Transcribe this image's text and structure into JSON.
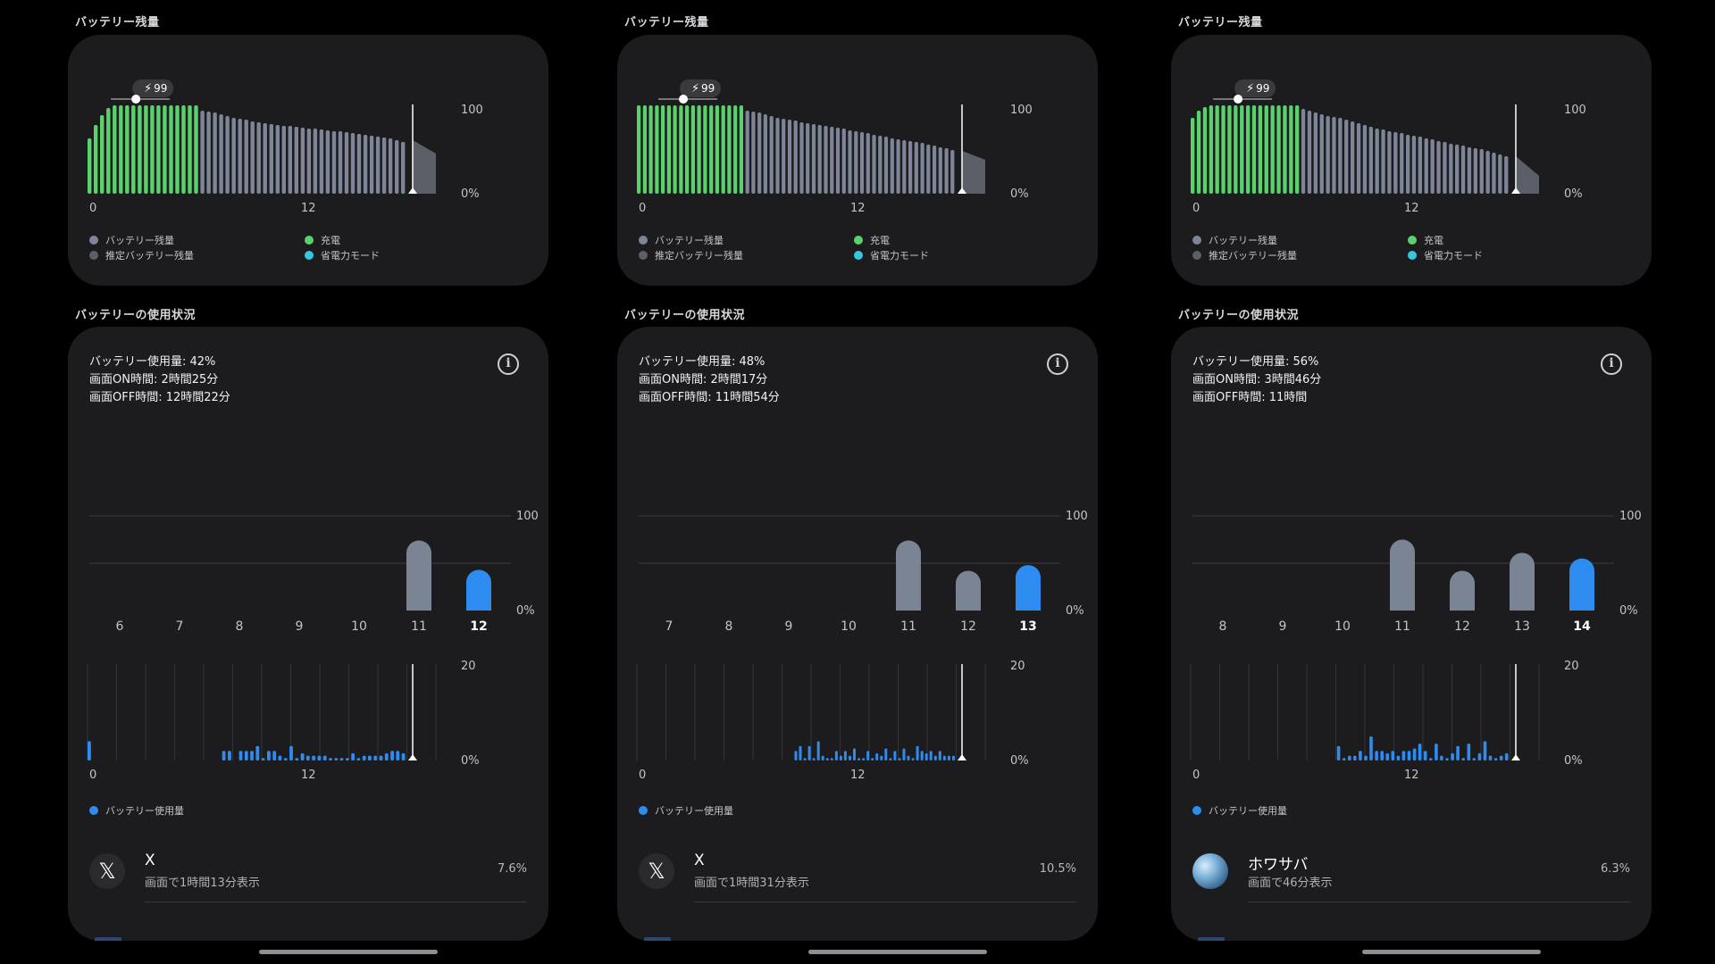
{
  "colors": {
    "charging": "#5bd16d",
    "battery_level": "#7d8597",
    "estimated": "#5b5f68",
    "power_saving": "#34c8e0",
    "usage": "#2e8cf0",
    "usage_past": "#7a8494"
  },
  "common": {
    "level_title": "バッテリー残量",
    "usage_title": "バッテリーの使用状況",
    "legend_level": "バッテリー残量",
    "legend_estimated": "推定バッテリー残量",
    "legend_charge": "充電",
    "legend_saver": "省電力モード",
    "legend_usage": "バッテリー使用量",
    "axis_100": "100",
    "axis_0": "0%",
    "axis_20": "20",
    "tick_0": "0",
    "tick_12": "12",
    "info_icon": "info-icon"
  },
  "screens": [
    {
      "charge_badge": "99",
      "stats": {
        "usage": "バッテリー使用量: 42%",
        "on": "画面ON時間: 2時間25分",
        "off": "画面OFF時間: 12時間22分"
      },
      "app": {
        "icon": "x-icon",
        "name": "X",
        "sub": "画面で1時間13分表示",
        "pct": "7.6%"
      }
    },
    {
      "charge_badge": "99",
      "stats": {
        "usage": "バッテリー使用量: 48%",
        "on": "画面ON時間: 2時間17分",
        "off": "画面OFF時間: 11時間54分"
      },
      "app": {
        "icon": "x-icon",
        "name": "X",
        "sub": "画面で1時間31分表示",
        "pct": "10.5%"
      }
    },
    {
      "charge_badge": "99",
      "stats": {
        "usage": "バッテリー使用量: 56%",
        "on": "画面ON時間: 3時間46分",
        "off": "画面OFF時間: 11時間"
      },
      "app": {
        "icon": "globe-icon",
        "name": "ホワサバ",
        "sub": "画面で46分表示",
        "pct": "6.3%"
      }
    }
  ],
  "chart_data": [
    {
      "type": "bar",
      "title": "バッテリー残量",
      "screen": 0,
      "x_ticks": [
        "0",
        "12"
      ],
      "ylim": [
        0,
        100
      ],
      "charging_values": [
        62,
        77,
        88,
        96,
        99,
        99,
        99,
        99,
        99,
        99,
        99,
        99,
        99,
        99,
        99,
        99,
        99,
        99
      ],
      "level_values": [
        93,
        92,
        91,
        89,
        87,
        85,
        84,
        83,
        81,
        80,
        79,
        78,
        77,
        76,
        76,
        75,
        74,
        73,
        73,
        72,
        71,
        70,
        70,
        69,
        68,
        67,
        66,
        65,
        64,
        63,
        62,
        60,
        58
      ],
      "estimated_trend": [
        60,
        45
      ]
    },
    {
      "type": "bar",
      "title": "バッテリー残量",
      "screen": 1,
      "x_ticks": [
        "0",
        "12"
      ],
      "ylim": [
        0,
        100
      ],
      "charging_values": [
        99,
        99,
        99,
        99,
        99,
        99,
        99,
        99,
        99,
        99,
        99,
        99,
        99,
        99,
        99,
        99,
        99,
        99
      ],
      "level_values": [
        93,
        92,
        91,
        89,
        87,
        85,
        84,
        83,
        82,
        80,
        79,
        78,
        77,
        76,
        75,
        74,
        73,
        71,
        70,
        69,
        68,
        66,
        65,
        64,
        62,
        61,
        60,
        59,
        58,
        57,
        55,
        54,
        52,
        51,
        49
      ],
      "estimated_trend": [
        48,
        38
      ]
    },
    {
      "type": "bar",
      "title": "バッテリー残量",
      "screen": 2,
      "x_ticks": [
        "0",
        "12"
      ],
      "ylim": [
        0,
        100
      ],
      "charging_values": [
        85,
        93,
        97,
        99,
        99,
        99,
        99,
        99,
        99,
        99,
        99,
        99,
        99,
        99,
        99,
        99,
        99,
        99
      ],
      "level_values": [
        95,
        93,
        91,
        89,
        87,
        86,
        85,
        83,
        81,
        79,
        77,
        75,
        73,
        72,
        70,
        69,
        68,
        66,
        65,
        64,
        62,
        61,
        59,
        58,
        56,
        55,
        54,
        52,
        51,
        50,
        48,
        46,
        44,
        42
      ],
      "estimated_trend": [
        42,
        20
      ]
    },
    {
      "type": "bar",
      "title": "バッテリーの使用状況",
      "screen": 0,
      "ylim": [
        0,
        100
      ],
      "categories": [
        "6",
        "7",
        "8",
        "9",
        "10",
        "11",
        "12"
      ],
      "values": [
        0,
        0,
        0,
        0,
        0,
        74,
        43
      ],
      "highlight": "12"
    },
    {
      "type": "bar",
      "title": "バッテリーの使用状況",
      "screen": 1,
      "ylim": [
        0,
        100
      ],
      "categories": [
        "7",
        "8",
        "9",
        "10",
        "11",
        "12",
        "13"
      ],
      "values": [
        0,
        0,
        0,
        0,
        74,
        42,
        48
      ],
      "highlight": "13"
    },
    {
      "type": "bar",
      "title": "バッテリーの使用状況",
      "screen": 2,
      "ylim": [
        0,
        100
      ],
      "categories": [
        "8",
        "9",
        "10",
        "11",
        "12",
        "13",
        "14"
      ],
      "values": [
        0,
        0,
        0,
        75,
        42,
        61,
        55
      ],
      "highlight": "14"
    },
    {
      "type": "bar",
      "title": "バッテリー使用量",
      "screen": 0,
      "ylim": [
        0,
        20
      ],
      "x_ticks": [
        "0",
        "12"
      ],
      "values": [
        4,
        0,
        0,
        0,
        0,
        0,
        0,
        0,
        0,
        0,
        0,
        0,
        0,
        0,
        0,
        0,
        0,
        0,
        0,
        0,
        0,
        0,
        0,
        0,
        2,
        2,
        0,
        2,
        2,
        2,
        3,
        0.5,
        2,
        2,
        1,
        0.5,
        3,
        0.5,
        1.5,
        1,
        1,
        1,
        1,
        0.5,
        0.5,
        0.5,
        0.5,
        1.5,
        0.5,
        1,
        1,
        1,
        1,
        1.5,
        2,
        2,
        1.5
      ]
    },
    {
      "type": "bar",
      "title": "バッテリー使用量",
      "screen": 1,
      "ylim": [
        0,
        20
      ],
      "x_ticks": [
        "0",
        "12"
      ],
      "values": [
        0,
        0,
        0,
        0,
        0,
        0,
        0,
        0,
        0,
        0,
        0,
        0,
        0,
        0,
        0,
        0,
        0,
        0,
        0,
        0,
        0,
        0,
        0,
        0,
        0,
        0,
        0,
        0,
        0,
        0,
        0,
        0,
        0,
        0,
        0,
        2,
        3,
        0.5,
        3,
        0.5,
        4,
        1,
        0.5,
        0.5,
        2,
        1,
        2,
        1,
        2.5,
        0.5,
        0.5,
        2,
        0.5,
        1.5,
        1,
        2.5,
        0.5,
        2,
        0.5,
        2.5,
        1,
        0.5,
        3,
        2,
        1.5,
        2,
        1,
        2,
        1,
        1,
        1
      ]
    },
    {
      "type": "bar",
      "title": "バッテリー使用量",
      "screen": 2,
      "ylim": [
        0,
        20
      ],
      "x_ticks": [
        "0",
        "12"
      ],
      "values": [
        0,
        0,
        0,
        0,
        0,
        0,
        0,
        0,
        0,
        0,
        0,
        0,
        0,
        0,
        0,
        0,
        0,
        0,
        0,
        0,
        0,
        0,
        0,
        0,
        0,
        0,
        0,
        3,
        0.5,
        1,
        1,
        2,
        1,
        5,
        2,
        2,
        1.5,
        2,
        1,
        2,
        2,
        2.5,
        3.5,
        2,
        0.5,
        3.5,
        1,
        0.5,
        1.5,
        3,
        0.5,
        3.5,
        0.5,
        1.5,
        4,
        1,
        0.5,
        1,
        1.5
      ]
    }
  ]
}
